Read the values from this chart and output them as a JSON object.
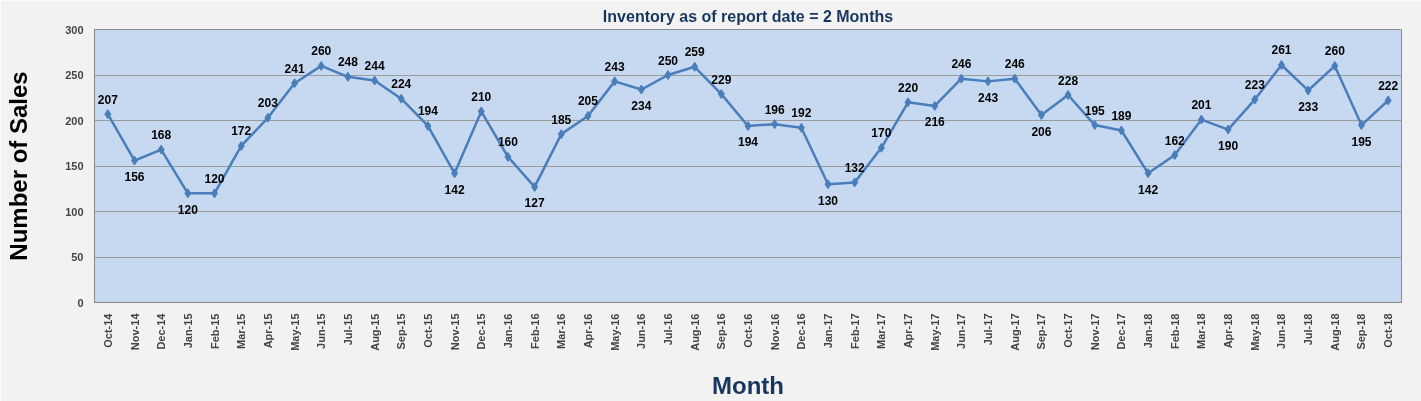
{
  "chart_data": {
    "type": "line",
    "title": "Inventory as of report date = 2 Months",
    "xlabel": "Month",
    "ylabel": "Number of Sales",
    "categories": [
      "Oct-14",
      "Nov-14",
      "Dec-14",
      "Jan-15",
      "Feb-15",
      "Mar-15",
      "Apr-15",
      "May-15",
      "Jun-15",
      "Jul-15",
      "Aug-15",
      "Sep-15",
      "Oct-15",
      "Nov-15",
      "Dec-15",
      "Jan-16",
      "Feb-16",
      "Mar-16",
      "Apr-16",
      "May-16",
      "Jun-16",
      "Jul-16",
      "Aug-16",
      "Sep-16",
      "Oct-16",
      "Nov-16",
      "Dec-16",
      "Jan-17",
      "Feb-17",
      "Mar-17",
      "Apr-17",
      "May-17",
      "Jun-17",
      "Jul-17",
      "Aug-17",
      "Sep-17",
      "Oct-17",
      "Nov-17",
      "Dec-17",
      "Jan-18",
      "Feb-18",
      "Mar-18",
      "Apr-18",
      "May-18",
      "Jun-18",
      "Jul-18",
      "Aug-18",
      "Sep-18",
      "Oct-18"
    ],
    "series": [
      {
        "color": "#4a7ebb",
        "values": [
          207,
          156,
          168,
          120,
          120,
          172,
          203,
          241,
          260,
          248,
          244,
          224,
          194,
          142,
          210,
          160,
          127,
          185,
          205,
          243,
          234,
          250,
          259,
          229,
          194,
          196,
          192,
          130,
          132,
          170,
          220,
          216,
          246,
          243,
          246,
          206,
          228,
          195,
          189,
          142,
          162,
          201,
          190,
          223,
          261,
          233,
          260,
          195,
          222
        ]
      }
    ],
    "ylim": [
      0,
      300
    ],
    "yticks": [
      0,
      50,
      100,
      150,
      200,
      250,
      300
    ],
    "grid": "y",
    "marker": "diamond",
    "line_style": "solid",
    "data_labels": true
  }
}
